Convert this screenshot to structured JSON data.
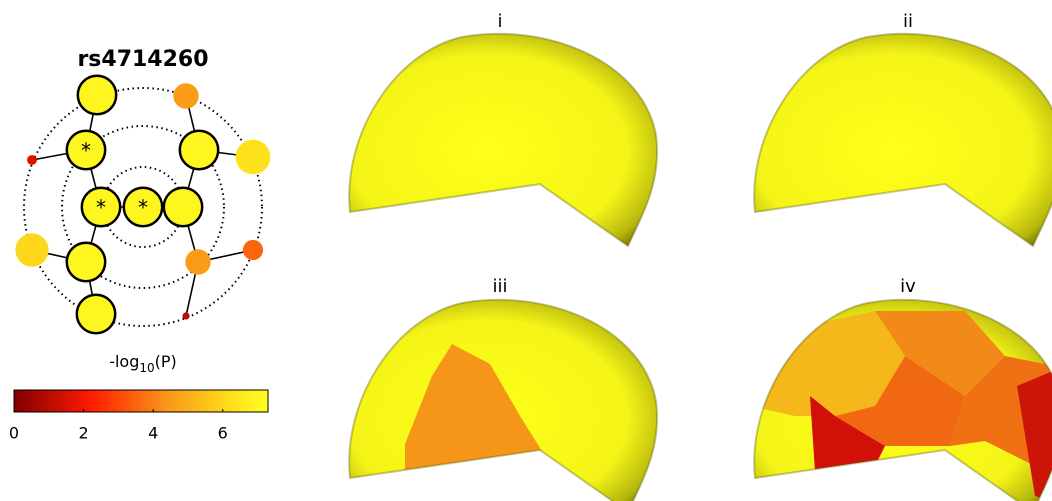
{
  "title": "rs4714260",
  "nodes": [
    {
      "value": 7.0
    },
    {
      "value": 7.0,
      "marker": "*"
    },
    {
      "value": 7.0,
      "marker": "*"
    },
    {
      "value": 7.0,
      "marker": "*"
    },
    {
      "value": 7.0
    },
    {
      "value": 7.0
    },
    {
      "value": 4.5
    },
    {
      "value": 6.3
    },
    {
      "value": 1.5
    },
    {
      "value": 6.0
    },
    {
      "value": 7.0
    },
    {
      "value": 7.0
    },
    {
      "value": 4.5
    },
    {
      "value": 3.5
    },
    {
      "value": 1.0
    }
  ],
  "colorbar": {
    "label": "-log",
    "label_sub": "10",
    "label_end": "(P)",
    "range": [
      0,
      7.3
    ],
    "ticks": [
      0,
      2,
      4,
      6
    ]
  },
  "panels": [
    {
      "label": "i"
    },
    {
      "label": "ii"
    },
    {
      "label": "iii"
    },
    {
      "label": "iv"
    }
  ]
}
